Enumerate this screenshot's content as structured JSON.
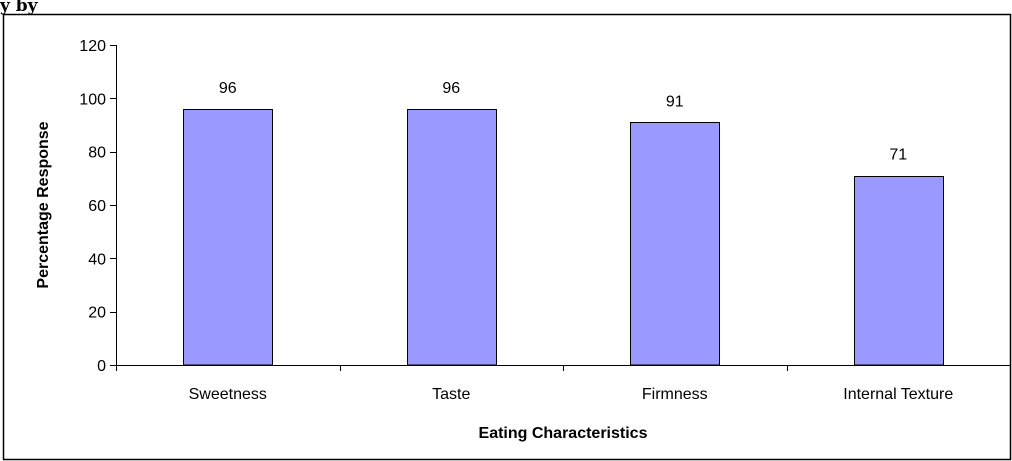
{
  "chart_data": {
    "type": "bar",
    "title": "",
    "xlabel": "Eating Characteristics",
    "ylabel": "Percentage Response",
    "categories": [
      "Sweetness",
      "Taste",
      "Firmness",
      "Internal Texture"
    ],
    "values": [
      96,
      96,
      91,
      71
    ],
    "data_labels": [
      "96",
      "96",
      "91",
      "71"
    ],
    "ylim": [
      0,
      120
    ],
    "yticks": [
      0,
      20,
      40,
      60,
      80,
      100,
      120
    ],
    "ytick_labels": [
      "0",
      "20",
      "40",
      "60",
      "80",
      "100",
      "120"
    ],
    "grid": false,
    "legend": "none",
    "colors": {
      "bar_fill": "#9999ff",
      "bar_stroke": "#000000",
      "frame": "#000000"
    }
  },
  "cropped_heading_text": "y by"
}
